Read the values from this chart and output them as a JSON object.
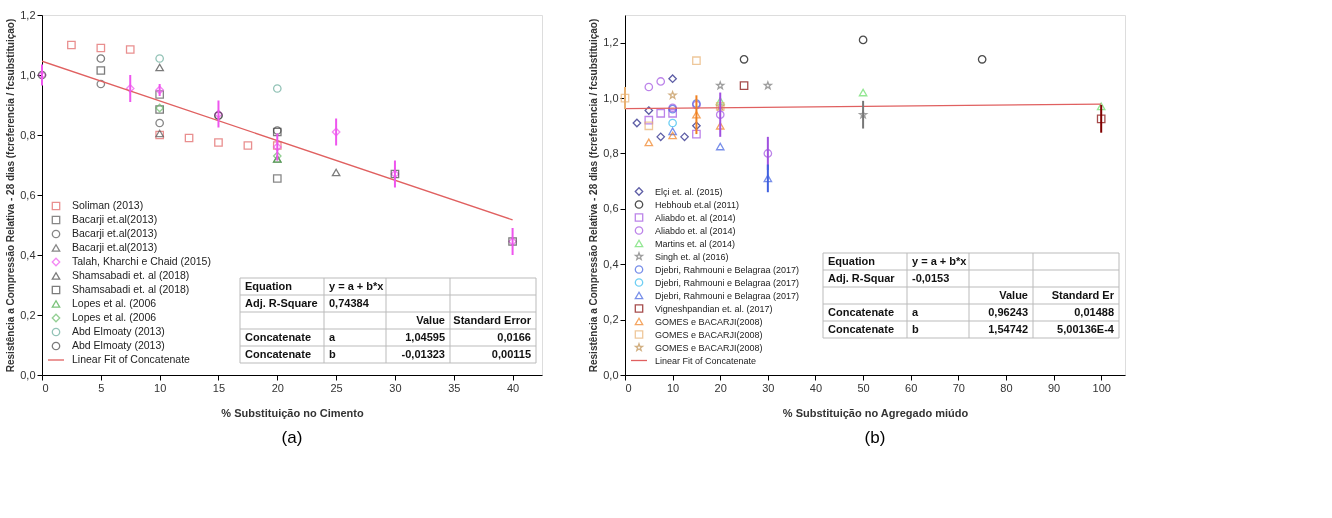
{
  "chart_data": [
    {
      "type": "scatter",
      "title": "(a)",
      "xlabel": "% Substituição no Cimento",
      "ylabel": "Resistência a Compressão Relativa - 28 dias (fcreferencia / fcsubstituiçao)",
      "xlim": [
        0,
        42.5
      ],
      "ylim": [
        0,
        1.2
      ],
      "xticks": [
        0,
        5,
        10,
        15,
        20,
        25,
        30,
        35,
        40
      ],
      "yticks": [
        {
          "value": 0,
          "label": "0,0"
        },
        {
          "value": 0.2,
          "label": "0,2"
        },
        {
          "value": 0.4,
          "label": "0,4"
        },
        {
          "value": 0.6,
          "label": "0,6"
        },
        {
          "value": 0.8,
          "label": "0,8"
        },
        {
          "value": 1.0,
          "label": "1,0"
        },
        {
          "value": 1.2,
          "label": "1,2"
        }
      ],
      "legend": "bottom left",
      "series": [
        {
          "name": "Soliman (2013)",
          "color": "#e06060",
          "marker": "square",
          "x": [
            2.5,
            5,
            7.5,
            10,
            12.5,
            15,
            17.5,
            20
          ],
          "values": [
            1.1,
            1.09,
            1.085,
            0.8,
            0.79,
            0.775,
            0.765,
            0.765
          ]
        },
        {
          "name": "Bacarji et.al(2013)",
          "color": "#555555",
          "marker": "square",
          "x": [
            10,
            20
          ],
          "values": [
            0.935,
            0.655
          ]
        },
        {
          "name": "Bacarji et.al(2013)",
          "color": "#555555",
          "marker": "circle",
          "x": [
            5,
            10,
            15
          ],
          "values": [
            0.97,
            0.84,
            0.865
          ]
        },
        {
          "name": "Bacarji et.al(2013)",
          "color": "#555555",
          "marker": "triangle",
          "x": [
            10,
            20
          ],
          "values": [
            0.805,
            0.72
          ]
        },
        {
          "name": "Talah, Kharchi e Chaid (2015)",
          "color": "#ee55ee",
          "marker": "diamond",
          "x": [
            0,
            7.5,
            10,
            15,
            20,
            25,
            30,
            40
          ],
          "values": [
            1.0,
            0.955,
            0.95,
            0.87,
            0.76,
            0.81,
            0.67,
            0.445
          ],
          "errors": [
            0.035,
            0.045,
            0.02,
            0.045,
            0.045,
            0.045,
            0.045,
            0.045
          ]
        },
        {
          "name": "Shamsabadi et. al (2018)",
          "color": "#444444",
          "marker": "triangle",
          "x": [
            10,
            25
          ],
          "values": [
            1.025,
            0.675
          ]
        },
        {
          "name": "Shamsabadi et. al (2018)",
          "color": "#444444",
          "marker": "square",
          "x": [
            5,
            10,
            20,
            30,
            40
          ],
          "values": [
            1.015,
            0.885,
            0.81,
            0.67,
            0.445
          ]
        },
        {
          "name": "Lopes et al. (2006",
          "color": "#44aa44",
          "marker": "triangle",
          "x": [
            20
          ],
          "values": [
            0.72
          ]
        },
        {
          "name": "Lopes et al. (2006",
          "color": "#66bb66",
          "marker": "diamond",
          "x": [
            10,
            20
          ],
          "values": [
            0.89,
            0.73
          ]
        },
        {
          "name": "Abd Elmoaty (2013)",
          "color": "#66aa99",
          "marker": "circle",
          "x": [
            10,
            20
          ],
          "values": [
            1.055,
            0.955
          ]
        },
        {
          "name": "Abd Elmoaty (2013)",
          "color": "#444444",
          "marker": "circle",
          "x": [
            0,
            5,
            15,
            20
          ],
          "values": [
            1.0,
            1.055,
            0.865,
            0.815
          ]
        },
        {
          "name": "Linear Fit of Concatenate",
          "type": "line",
          "color": "#e06060",
          "x": [
            0,
            40
          ],
          "values": [
            1.046,
            0.517
          ]
        }
      ],
      "annotations": [
        "Equation",
        "y = a + b*x",
        "Adj. R-Square",
        "0,74384",
        "Value",
        "Standard Error",
        "Concatenate",
        "a",
        "1,04595",
        "0,0166",
        "Concatenate",
        "b",
        "-0,01323",
        "0,00115"
      ]
    },
    {
      "type": "scatter",
      "title": "(b)",
      "xlabel": "% Substituição no Agregado miúdo",
      "ylabel": "Resistência a Compressão Relativa - 28 dias (fcreferencia / fcsubstituiçao)",
      "xlim": [
        0,
        105
      ],
      "ylim": [
        0,
        1.3
      ],
      "xticks": [
        0,
        10,
        20,
        30,
        40,
        50,
        60,
        70,
        80,
        90,
        100
      ],
      "yticks": [
        {
          "value": 0,
          "label": "0,0"
        },
        {
          "value": 0.2,
          "label": "0,2"
        },
        {
          "value": 0.4,
          "label": "0,4"
        },
        {
          "value": 0.6,
          "label": "0,6"
        },
        {
          "value": 0.8,
          "label": "0,8"
        },
        {
          "value": 1.0,
          "label": "1,0"
        },
        {
          "value": 1.2,
          "label": "1,2"
        }
      ],
      "legend": "bottom left",
      "series": [
        {
          "name": "Elçi et. al. (2015)",
          "color": "#1a1a80",
          "marker": "diamond",
          "x": [
            2.5,
            5,
            7.5,
            10,
            12.5,
            15
          ],
          "values": [
            0.91,
            0.955,
            0.86,
            1.07,
            0.86,
            0.9
          ]
        },
        {
          "name": "Hebhoub et.al (2011)",
          "color": "#000000",
          "marker": "circle",
          "x": [
            25,
            50,
            75
          ],
          "values": [
            1.14,
            1.21,
            1.14
          ]
        },
        {
          "name": "Aliabdo et. al (2014)",
          "color": "#a050e0",
          "marker": "square",
          "x": [
            5,
            7.5,
            10,
            15
          ],
          "values": [
            0.92,
            0.945,
            0.945,
            0.87
          ]
        },
        {
          "name": "Aliabdo et. al (2014)",
          "color": "#a050e0",
          "marker": "circle",
          "x": [
            5,
            7.5,
            10,
            15,
            20,
            30
          ],
          "values": [
            1.04,
            1.06,
            0.965,
            0.975,
            0.94,
            0.8
          ],
          "errors": [
            null,
            null,
            null,
            null,
            0.08,
            0.06
          ]
        },
        {
          "name": "Martins et. al (2014)",
          "color": "#66dd66",
          "marker": "triangle",
          "x": [
            20,
            50,
            100
          ],
          "values": [
            0.99,
            1.02,
            0.97
          ]
        },
        {
          "name": "Singh et. al (2016)",
          "color": "#777777",
          "marker": "star",
          "x": [
            20,
            30,
            50
          ],
          "values": [
            1.045,
            1.045,
            0.94
          ],
          "errors": [
            null,
            null,
            0.05
          ]
        },
        {
          "name": "Djebri, Rahmouni e  Belagraa (2017)",
          "color": "#4060e0",
          "marker": "circle",
          "x": [
            10,
            15
          ],
          "values": [
            0.96,
            0.98
          ]
        },
        {
          "name": "Djebri, Rahmouni e  Belagraa (2017)",
          "color": "#33bbee",
          "marker": "circle",
          "x": [
            10
          ],
          "values": [
            0.91
          ]
        },
        {
          "name": "Djebri, Rahmouni e  Belagraa (2017)",
          "color": "#4060e0",
          "marker": "triangle",
          "x": [
            10,
            20,
            30
          ],
          "values": [
            0.88,
            0.825,
            0.71
          ],
          "errors": [
            null,
            null,
            0.05
          ]
        },
        {
          "name": "Vigneshpandian et. al. (2017)",
          "color": "#800000",
          "marker": "square",
          "x": [
            25,
            100
          ],
          "values": [
            1.045,
            0.925
          ],
          "errors": [
            null,
            0.05
          ]
        },
        {
          "name": "GOMES e BACARJI(2008)",
          "color": "#f08020",
          "marker": "triangle",
          "x": [
            5,
            10,
            15,
            20
          ],
          "values": [
            0.84,
            0.865,
            0.94,
            0.9
          ],
          "errors": [
            null,
            null,
            0.07,
            null
          ]
        },
        {
          "name": "GOMES e BACARJI(2008)",
          "color": "#e8b070",
          "marker": "square",
          "x": [
            0,
            5,
            15,
            20
          ],
          "values": [
            1.0,
            0.9,
            1.135,
            0.97
          ],
          "errors": [
            0.04,
            null,
            null,
            null
          ]
        },
        {
          "name": "GOMES e BACARJI(2008)",
          "color": "#c09050",
          "marker": "star",
          "x": [
            10,
            20
          ],
          "values": [
            1.01,
            0.97
          ]
        },
        {
          "name": "Linear Fit of Concatenate",
          "type": "line",
          "color": "#e06060",
          "x": [
            0,
            100
          ],
          "values": [
            0.962,
            0.978
          ]
        }
      ],
      "annotations": [
        "Equation",
        "y = a + b*x",
        "Adj. R-Squar",
        "-0,0153",
        "Value",
        "Standard Er",
        "Concatenate",
        "a",
        "0,96243",
        "0,01488",
        "Concatenate",
        "b",
        "1,54742",
        "5,00136E-4"
      ]
    }
  ]
}
